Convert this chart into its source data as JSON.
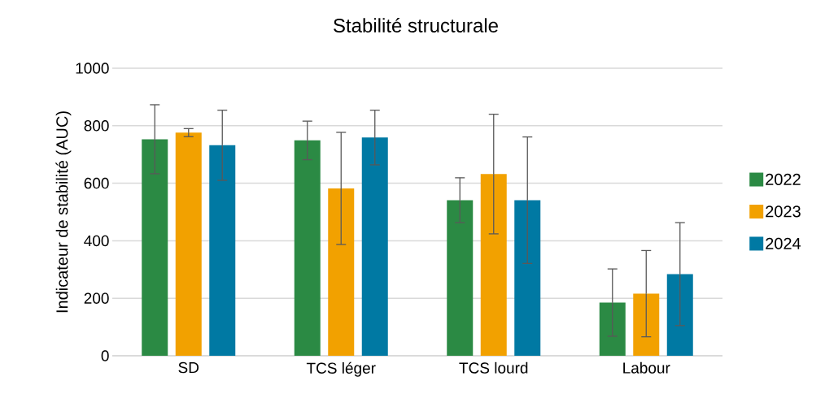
{
  "chart_data": {
    "type": "bar",
    "title": "Stabilité structurale",
    "ylabel": "Indicateur de stabilité (AUC)",
    "categories": [
      "SD",
      "TCS léger",
      "TCS lourd",
      "Labour"
    ],
    "series": [
      {
        "name": "2022",
        "color": "#2b8a44",
        "values": [
          753,
          749,
          541,
          185
        ],
        "errors": [
          120,
          67,
          78,
          117
        ]
      },
      {
        "name": "2023",
        "color": "#f2a100",
        "values": [
          776,
          582,
          632,
          216
        ],
        "errors": [
          14,
          195,
          208,
          150
        ]
      },
      {
        "name": "2024",
        "color": "#0079a3",
        "values": [
          732,
          759,
          541,
          284
        ],
        "errors": [
          122,
          95,
          220,
          179
        ]
      }
    ],
    "ylim": [
      0,
      1000
    ],
    "yticks": [
      0,
      200,
      400,
      600,
      800,
      1000
    ],
    "grid": "y",
    "legend": "right"
  }
}
